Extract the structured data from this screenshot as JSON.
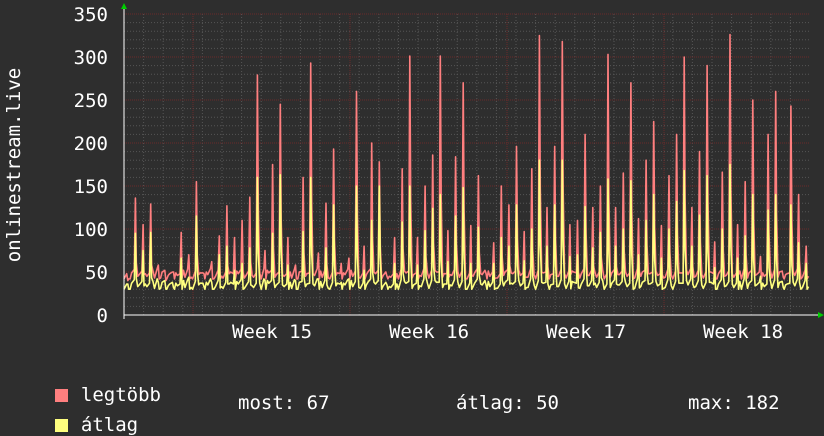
{
  "chart_data": {
    "type": "line",
    "ylabel": "onlinestream.live",
    "ylim": [
      0,
      350
    ],
    "yticks": [
      0,
      50,
      100,
      150,
      200,
      250,
      300,
      350
    ],
    "xticks": [
      "Week 15",
      "Week 16",
      "Week 17",
      "Week 18"
    ],
    "grid": true,
    "series": [
      {
        "name": "legtöbb",
        "color": "#ff7f7f",
        "values": [
          40,
          136,
          105,
          129,
          58,
          40,
          50,
          96,
          70,
          155,
          48,
          62,
          92,
          127,
          90,
          110,
          137,
          279,
          75,
          175,
          245,
          90,
          58,
          160,
          293,
          72,
          130,
          193,
          60,
          66,
          260,
          80,
          200,
          178,
          45,
          90,
          170,
          301,
          90,
          150,
          186,
          301,
          98,
          184,
          270,
          104,
          162,
          48,
          84,
          150,
          128,
          196,
          97,
          170,
          325,
          125,
          196,
          318,
          105,
          110,
          210,
          125,
          150,
          303,
          125,
          165,
          270,
          112,
          180,
          225,
          104,
          162,
          210,
          300,
          125,
          190,
          290,
          85,
          166,
          326,
          105,
          155,
          250,
          68,
          210,
          260,
          44,
          243,
          140,
          80
        ]
      },
      {
        "name": "átlag",
        "color": "#ffff7f",
        "values": [
          36,
          95,
          75,
          96,
          38,
          30,
          32,
          66,
          44,
          115,
          33,
          38,
          70,
          80,
          52,
          60,
          78,
          160,
          40,
          95,
          163,
          58,
          40,
          97,
          160,
          42,
          78,
          128,
          38,
          42,
          150,
          52,
          110,
          150,
          35,
          60,
          108,
          150,
          58,
          98,
          124,
          140,
          62,
          115,
          148,
          60,
          102,
          35,
          60,
          90,
          80,
          128,
          63,
          100,
          180,
          80,
          128,
          180,
          68,
          70,
          126,
          78,
          96,
          158,
          80,
          100,
          156,
          70,
          110,
          140,
          66,
          100,
          132,
          168,
          80,
          116,
          162,
          55,
          100,
          175,
          66,
          92,
          140,
          45,
          122,
          140,
          32,
          128,
          84,
          60
        ]
      }
    ],
    "stats": {
      "most_label": "most:",
      "most": "67",
      "atlag_label": "átlag:",
      "atlag": "50",
      "max_label": "max:",
      "max": "182"
    }
  },
  "colors": {
    "background": "#2e2e2e",
    "plot": "#2e2e2e",
    "grid_major": "#6b2a2a",
    "grid_minor": "#555555",
    "arrow": "#00cc00"
  }
}
